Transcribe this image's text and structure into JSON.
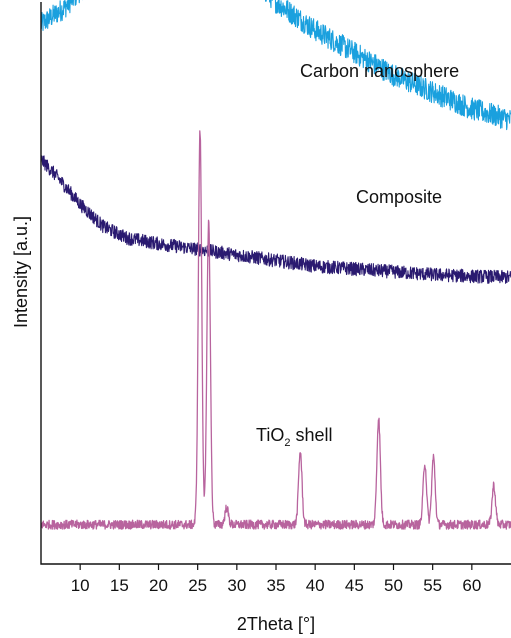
{
  "chart_data": {
    "type": "line",
    "title": "",
    "xlabel": "2Theta [°]",
    "ylabel": "Intensity [a.u.]",
    "xlim": [
      5,
      65
    ],
    "x_ticks": [
      10,
      15,
      20,
      25,
      30,
      35,
      40,
      45,
      50,
      55,
      60
    ],
    "y_ticks": "none",
    "grid": false,
    "legend": "none",
    "series": [
      {
        "name": "Carbon nanosphere",
        "color": "#1aa0de",
        "stacked_offset": 0.74,
        "profile": {
          "x": [
            5,
            8,
            12,
            16,
            20,
            23,
            26,
            30,
            35,
            40,
            45,
            50,
            55,
            60,
            65
          ],
          "y": [
            0.22,
            0.25,
            0.31,
            0.38,
            0.45,
            0.47,
            0.41,
            0.33,
            0.26,
            0.21,
            0.17,
            0.13,
            0.1,
            0.07,
            0.05
          ]
        },
        "noise": 0.02
      },
      {
        "name": "Composite",
        "color": "#2a1a70",
        "stacked_offset": 0.5,
        "profile": {
          "x": [
            5,
            7,
            10,
            13,
            16,
            20,
            25,
            30,
            35,
            40,
            45,
            50,
            55,
            60,
            65
          ],
          "y": [
            0.22,
            0.19,
            0.14,
            0.1,
            0.08,
            0.07,
            0.06,
            0.05,
            0.04,
            0.03,
            0.025,
            0.02,
            0.015,
            0.012,
            0.01
          ]
        },
        "noise": 0.012
      },
      {
        "name": "TiO₂ shell",
        "label_parts": {
          "main": "TiO",
          "sub": "2",
          "rest": " shell"
        },
        "color": "#b8649e",
        "stacked_offset": 0.05,
        "baseline": 0.02,
        "peaks": [
          {
            "x": 25.3,
            "height": 0.7
          },
          {
            "x": 26.4,
            "height": 0.54
          },
          {
            "x": 28.7,
            "height": 0.03
          },
          {
            "x": 38.1,
            "height": 0.13
          },
          {
            "x": 48.1,
            "height": 0.19
          },
          {
            "x": 54.0,
            "height": 0.11
          },
          {
            "x": 55.1,
            "height": 0.12
          },
          {
            "x": 62.8,
            "height": 0.07
          }
        ],
        "noise": 0.008
      }
    ]
  }
}
